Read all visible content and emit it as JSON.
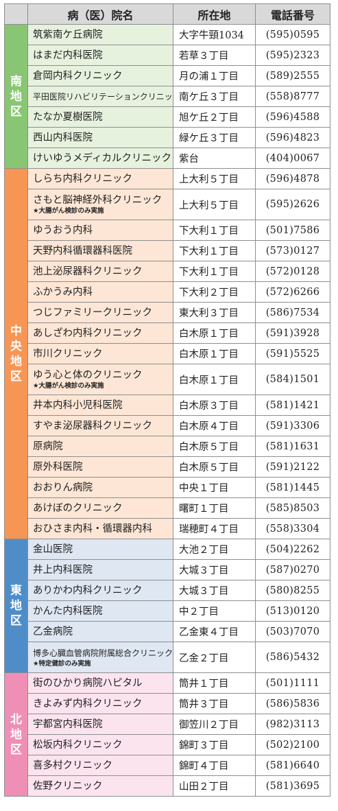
{
  "headers": {
    "name": "病（医）院名",
    "address": "所在地",
    "phone": "電話番号"
  },
  "districts": [
    {
      "label": "南地区",
      "color": "#89c674",
      "rows": [
        {
          "name": "筑紫南ケ丘病院",
          "address": "大字牛頸1034",
          "phone": "(595)0595"
        },
        {
          "name": "はまだ内科医院",
          "address": "若草３丁目",
          "phone": "(595)2323"
        },
        {
          "name": "倉岡内科クリニック",
          "address": "月の浦１丁目",
          "phone": "(589)2555"
        },
        {
          "name": "平田医院リハビリテーションクリニック",
          "address": "南ケ丘３丁目",
          "phone": "(558)8777",
          "small": true
        },
        {
          "name": "たなか夏樹医院",
          "address": "旭ケ丘２丁目",
          "phone": "(596)4588"
        },
        {
          "name": "西山内科医院",
          "address": "緑ケ丘３丁目",
          "phone": "(596)4823"
        },
        {
          "name": "けいゆうメディカルクリニック",
          "address": "紫台",
          "phone": "(404)0067"
        }
      ]
    },
    {
      "label": "中央地区",
      "color": "#f79554",
      "rows": [
        {
          "name": "しらち内科クリニック",
          "address": "上大利５丁目",
          "phone": "(596)4878"
        },
        {
          "name": "さもと脳神経外科クリニック",
          "note": "★大腸がん検診のみ実施",
          "address": "上大利５丁目",
          "phone": "(595)2626"
        },
        {
          "name": "ゆうおう内科",
          "address": "下大利１丁目",
          "phone": "(501)7586"
        },
        {
          "name": "天野内科循環器科医院",
          "address": "下大利１丁目",
          "phone": "(573)0127"
        },
        {
          "name": "池上泌尿器科クリニック",
          "address": "下大利１丁目",
          "phone": "(572)0128"
        },
        {
          "name": "ふかうみ内科",
          "address": "下大利２丁目",
          "phone": "(572)6266"
        },
        {
          "name": "つじファミリークリニック",
          "address": "東大利３丁目",
          "phone": "(586)7534"
        },
        {
          "name": "あしざわ内科クリニック",
          "address": "白木原１丁目",
          "phone": "(591)3928"
        },
        {
          "name": "市川クリニック",
          "address": "白木原１丁目",
          "phone": "(591)5525"
        },
        {
          "name": "ゆう心と体のクリニック",
          "note": "★大腸がん検診のみ実施",
          "address": "白木原１丁目",
          "phone": "(584)1501"
        },
        {
          "name": "井本内科小児科医院",
          "address": "白木原３丁目",
          "phone": "(581)1421"
        },
        {
          "name": "すやま泌尿器科クリニック",
          "address": "白木原４丁目",
          "phone": "(591)3306"
        },
        {
          "name": "原病院",
          "address": "白木原５丁目",
          "phone": "(581)1631"
        },
        {
          "name": "原外科医院",
          "address": "白木原５丁目",
          "phone": "(591)2122"
        },
        {
          "name": "おおりん病院",
          "address": "中央１丁目",
          "phone": "(581)1445"
        },
        {
          "name": "あけぼのクリニック",
          "address": "曙町１丁目",
          "phone": "(585)8503"
        },
        {
          "name": "おひさま内科・循環器内科",
          "address": "瑞穂町４丁目",
          "phone": "(558)3304"
        }
      ]
    },
    {
      "label": "東地区",
      "color": "#4f8dc8",
      "rows": [
        {
          "name": "金山医院",
          "address": "大池２丁目",
          "phone": "(504)2262"
        },
        {
          "name": "井上内科医院",
          "address": "大城３丁目",
          "phone": "(587)0270"
        },
        {
          "name": "ありかわ内科クリニック",
          "address": "大城３丁目",
          "phone": "(580)8255"
        },
        {
          "name": "かんた内科医院",
          "address": "中２丁目",
          "phone": "(513)0120"
        },
        {
          "name": "乙金病院",
          "address": "乙金東４丁目",
          "phone": "(503)7070"
        },
        {
          "name": "博多心臓血管病院附属総合クリニック",
          "note": "★特定健診のみ実施",
          "address": "乙金２丁目",
          "phone": "(586)5432",
          "small": true
        }
      ]
    },
    {
      "label": "北地区",
      "color": "#ef8fb6",
      "rows": [
        {
          "name": "街のひかり病院ハピタル",
          "address": "筒井１丁目",
          "phone": "(501)1111"
        },
        {
          "name": "きよみず内科クリニック",
          "address": "筒井３丁目",
          "phone": "(586)5836"
        },
        {
          "name": "宇都宮内科医院",
          "address": "御笠川２丁目",
          "phone": "(982)3113"
        },
        {
          "name": "松坂内科クリニック",
          "address": "錦町３丁目",
          "phone": "(502)2100"
        },
        {
          "name": "喜多村クリニック",
          "address": "錦町４丁目",
          "phone": "(581)6640"
        },
        {
          "name": "佐野クリニック",
          "address": "山田２丁目",
          "phone": "(581)3695"
        }
      ]
    }
  ]
}
